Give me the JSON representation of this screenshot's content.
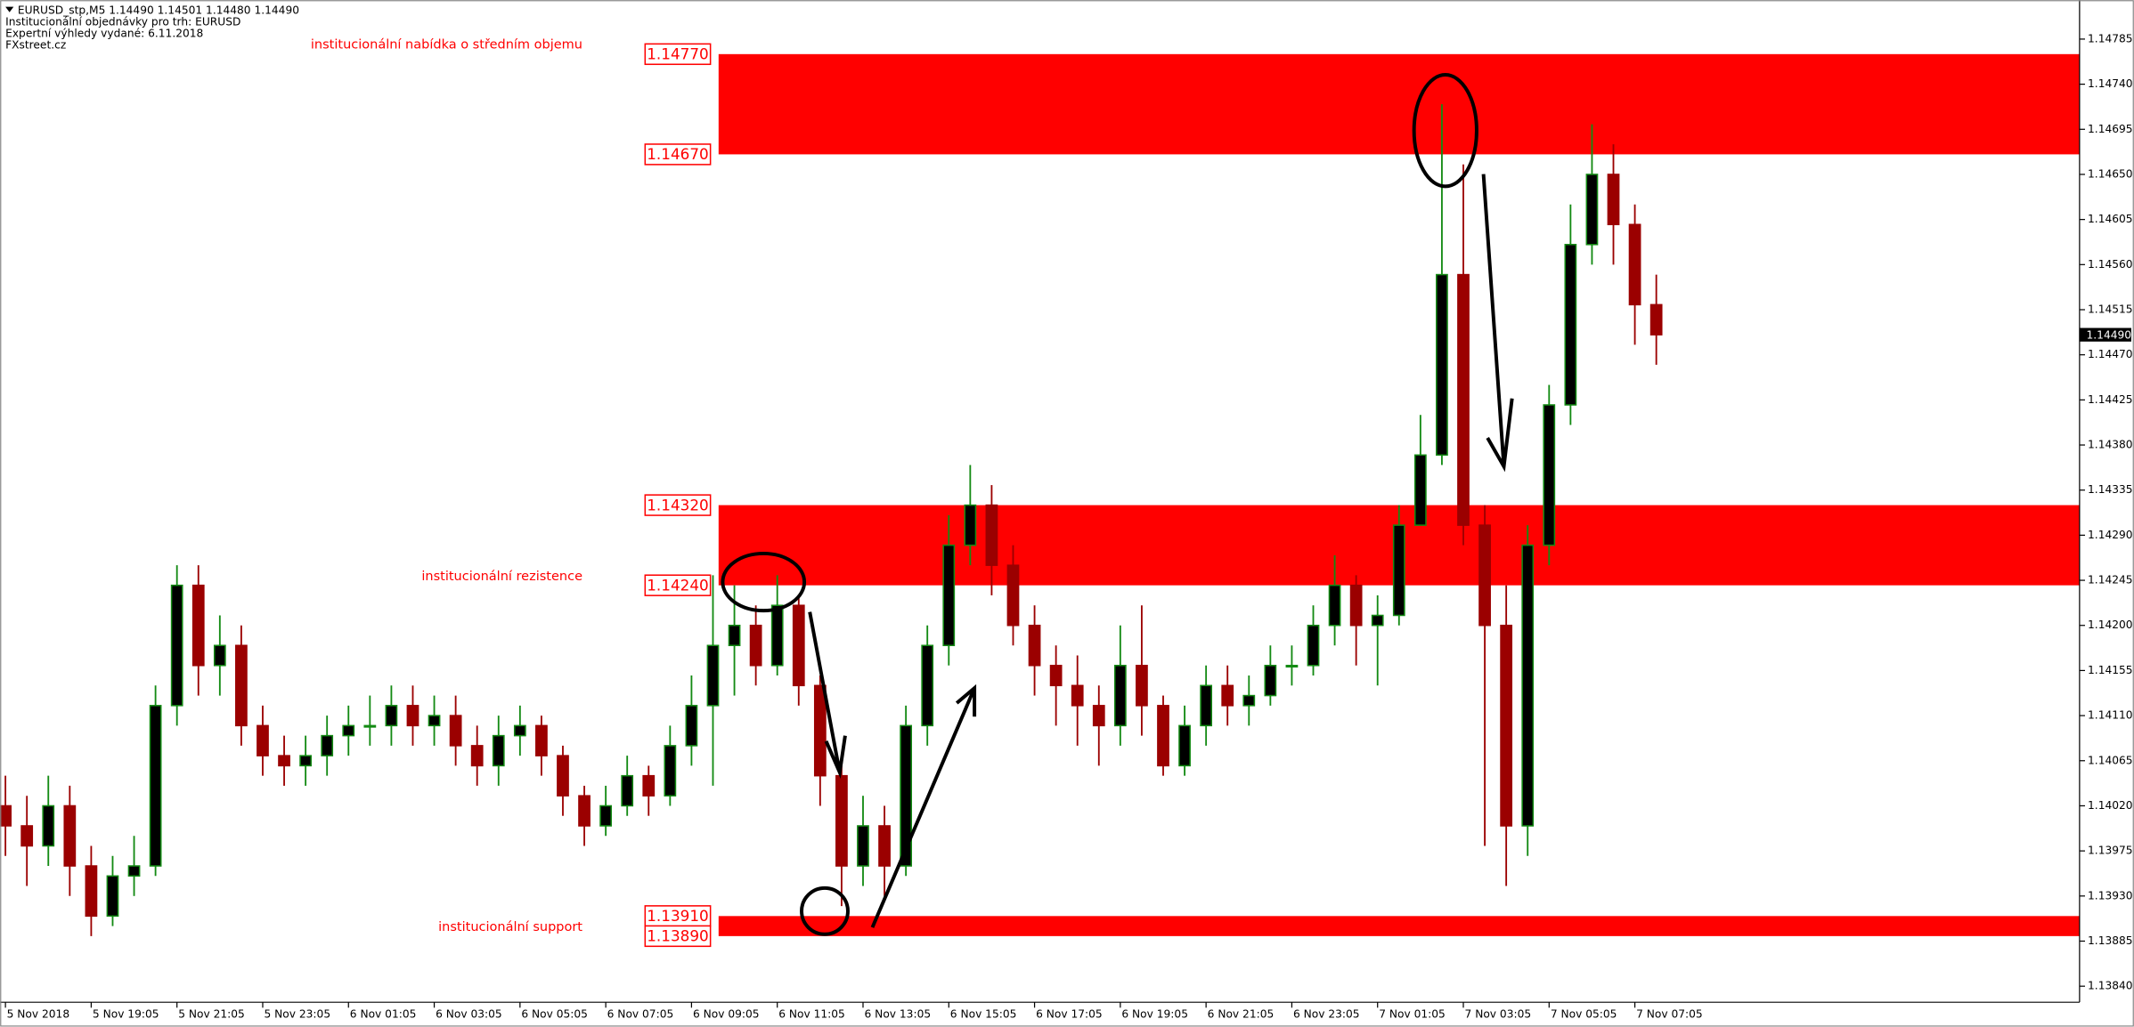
{
  "chart_data": {
    "type": "candlestick",
    "title": "EURUSD_stp,M5  1.14490 1.14501 1.14480 1.14490",
    "header_lines": [
      "Institucionální objednávky pro trh: EURUSD",
      "Expertní výhledy vydané: 6.11.2018",
      "FXstreet.cz"
    ],
    "up_color": "#138a13",
    "down_color": "#9b0000",
    "zone_color": "#ff0000",
    "categories": [
      "5 Nov 2018",
      null,
      null,
      null,
      "5 Nov 19:05",
      null,
      null,
      null,
      "5 Nov 21:05",
      null,
      null,
      null,
      "5 Nov 23:05",
      null,
      null,
      null,
      "6 Nov 01:05",
      null,
      null,
      null,
      "6 Nov 03:05",
      null,
      null,
      null,
      "6 Nov 05:05",
      null,
      null,
      null,
      "6 Nov 07:05",
      null,
      null,
      null,
      "6 Nov 09:05",
      null,
      null,
      null,
      "6 Nov 11:05",
      null,
      null,
      null,
      "6 Nov 13:05",
      null,
      null,
      null,
      "6 Nov 15:05",
      null,
      null,
      null,
      "6 Nov 17:05",
      null,
      null,
      null,
      "6 Nov 19:05",
      null,
      null,
      null,
      "6 Nov 21:05",
      null,
      null,
      null,
      "6 Nov 23:05",
      null,
      null,
      null,
      "7 Nov 01:05",
      null,
      null,
      null,
      "7 Nov 03:05",
      null,
      null,
      null,
      "7 Nov 05:05",
      null,
      null,
      null,
      "7 Nov 07:05",
      null
    ],
    "open": [
      1.1402,
      1.14,
      1.1398,
      1.1402,
      1.1396,
      1.1391,
      1.1395,
      1.1396,
      1.1412,
      1.1424,
      1.1416,
      1.1418,
      1.141,
      1.1407,
      1.1406,
      1.1407,
      1.1409,
      1.141,
      1.141,
      1.1412,
      1.141,
      1.1411,
      1.1408,
      1.1406,
      1.1409,
      1.141,
      1.1407,
      1.1403,
      1.14,
      1.1402,
      1.1405,
      1.1403,
      1.1408,
      1.1412,
      1.1418,
      1.142,
      1.1416,
      1.1422,
      1.1414,
      1.1405,
      1.1396,
      1.14,
      1.1396,
      1.141,
      1.1418,
      1.1428,
      1.1432,
      1.1426,
      1.142,
      1.1416,
      1.1414,
      1.1412,
      1.141,
      1.1416,
      1.1412,
      1.1406,
      1.141,
      1.1414,
      1.1412,
      1.1413,
      1.1416,
      1.1416,
      1.142,
      1.1424,
      1.142,
      1.1421,
      1.143,
      1.1437,
      1.1455,
      1.143,
      1.142,
      1.14,
      1.1428,
      1.1442,
      1.1458,
      1.1465,
      1.146,
      1.1452
    ],
    "high": [
      1.1405,
      1.1403,
      1.1405,
      1.1404,
      1.1398,
      1.1397,
      1.1399,
      1.1414,
      1.1426,
      1.1426,
      1.1421,
      1.142,
      1.1412,
      1.1409,
      1.1409,
      1.1411,
      1.1412,
      1.1413,
      1.1414,
      1.1414,
      1.1413,
      1.1413,
      1.141,
      1.1411,
      1.1412,
      1.1411,
      1.1408,
      1.1404,
      1.1404,
      1.1407,
      1.1406,
      1.141,
      1.1415,
      1.1425,
      1.1424,
      1.1422,
      1.1425,
      1.1423,
      1.1415,
      1.1406,
      1.1403,
      1.1402,
      1.1412,
      1.142,
      1.1431,
      1.1436,
      1.1434,
      1.1428,
      1.1422,
      1.1418,
      1.1417,
      1.1414,
      1.142,
      1.1422,
      1.1413,
      1.1412,
      1.1416,
      1.1416,
      1.1415,
      1.1418,
      1.1418,
      1.1422,
      1.1427,
      1.1425,
      1.1423,
      1.1432,
      1.1441,
      1.1472,
      1.1466,
      1.1432,
      1.1424,
      1.143,
      1.1444,
      1.1462,
      1.147,
      1.1468,
      1.1462,
      1.1455
    ],
    "low": [
      1.1397,
      1.1394,
      1.1396,
      1.1393,
      1.1389,
      1.139,
      1.1393,
      1.1395,
      1.141,
      1.1413,
      1.1413,
      1.1408,
      1.1405,
      1.1404,
      1.1404,
      1.1405,
      1.1407,
      1.1408,
      1.1408,
      1.1408,
      1.1408,
      1.1406,
      1.1404,
      1.1404,
      1.1407,
      1.1405,
      1.1401,
      1.1398,
      1.1399,
      1.1401,
      1.1401,
      1.1402,
      1.1406,
      1.1404,
      1.1413,
      1.1414,
      1.1415,
      1.1412,
      1.1402,
      1.1392,
      1.1394,
      1.1393,
      1.1395,
      1.1408,
      1.1416,
      1.1426,
      1.1423,
      1.1418,
      1.1413,
      1.141,
      1.1408,
      1.1406,
      1.1408,
      1.1409,
      1.1405,
      1.1405,
      1.1408,
      1.141,
      1.141,
      1.1412,
      1.1414,
      1.1415,
      1.1418,
      1.1416,
      1.1414,
      1.142,
      1.1431,
      1.1436,
      1.1428,
      1.1398,
      1.1394,
      1.1397,
      1.1426,
      1.144,
      1.1456,
      1.1456,
      1.1448,
      1.1446
    ],
    "close": [
      1.14,
      1.1398,
      1.1402,
      1.1396,
      1.1391,
      1.1395,
      1.1396,
      1.1412,
      1.1424,
      1.1416,
      1.1418,
      1.141,
      1.1407,
      1.1406,
      1.1407,
      1.1409,
      1.141,
      1.141,
      1.1412,
      1.141,
      1.1411,
      1.1408,
      1.1406,
      1.1409,
      1.141,
      1.1407,
      1.1403,
      1.14,
      1.1402,
      1.1405,
      1.1403,
      1.1408,
      1.1412,
      1.1418,
      1.142,
      1.1416,
      1.1422,
      1.1414,
      1.1405,
      1.1396,
      1.14,
      1.1396,
      1.141,
      1.1418,
      1.1428,
      1.1432,
      1.1426,
      1.142,
      1.1416,
      1.1414,
      1.1412,
      1.141,
      1.1416,
      1.1412,
      1.1406,
      1.141,
      1.1414,
      1.1412,
      1.1413,
      1.1416,
      1.1416,
      1.142,
      1.1424,
      1.142,
      1.1421,
      1.143,
      1.1437,
      1.1455,
      1.143,
      1.142,
      1.14,
      1.1428,
      1.1442,
      1.1458,
      1.1465,
      1.146,
      1.1452,
      1.1449
    ],
    "ylim": [
      1.13824,
      1.14824
    ],
    "yticks": [
      1.14785,
      {
        "value": 1.1474,
        "label": "1.14740"
      },
      1.14695,
      {
        "value": 1.1465,
        "label": "1.14650"
      },
      1.14605,
      {
        "value": 1.1456,
        "label": "1.14560"
      },
      1.14515,
      {
        "value": 1.1447,
        "label": "1.14470"
      },
      1.14425,
      {
        "value": 1.1438,
        "label": "1.14380"
      },
      1.14335,
      {
        "value": 1.1429,
        "label": "1.14290"
      },
      1.14245,
      {
        "value": 1.142,
        "label": "1.14200"
      },
      1.14155,
      {
        "value": 1.1411,
        "label": "1.14110"
      },
      1.14065,
      {
        "value": 1.1402,
        "label": "1.14020"
      },
      1.13975,
      {
        "value": 1.1393,
        "label": "1.13930"
      },
      1.13885,
      {
        "value": 1.1384,
        "label": "1.13840"
      }
    ],
    "current_price": {
      "value": 1.1449,
      "label": "1.14490"
    },
    "zones": [
      {
        "name": "institucionální nabídka o středním objemu",
        "top": {
          "value": 1.1477,
          "label": "1.14770"
        },
        "bottom": {
          "value": 1.1467,
          "label": "1.14670"
        }
      },
      {
        "name": "institucionální rezistence",
        "top": {
          "value": 1.1432,
          "label": "1.14320"
        },
        "bottom": {
          "value": 1.1424,
          "label": "1.14240"
        }
      },
      {
        "name": "institucionální support",
        "top": {
          "value": 1.1391,
          "label": "1.13910"
        },
        "bottom": {
          "value": 1.1389,
          "label": "1.13890"
        }
      }
    ],
    "grid": false
  }
}
